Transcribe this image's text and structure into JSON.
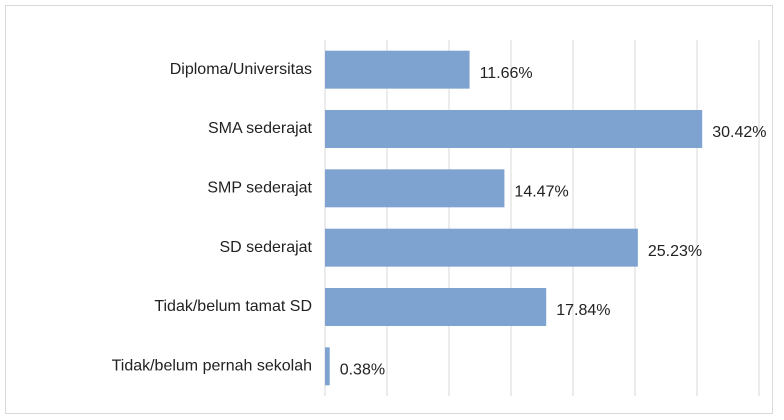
{
  "chart_data": {
    "type": "barh",
    "categories": [
      "Diploma/Universitas",
      "SMA sederajat",
      "SMP sederajat",
      "SD sederajat",
      "Tidak/belum tamat SD",
      "Tidak/belum pernah sekolah"
    ],
    "values": [
      11.66,
      30.42,
      14.47,
      25.23,
      17.84,
      0.38
    ],
    "value_labels": [
      "11.66%",
      "30.42%",
      "14.47%",
      "25.23%",
      "17.84%",
      "0.38%"
    ],
    "color": "#7fa3d0",
    "xlim": [
      0,
      35
    ],
    "xticks": [
      0,
      5,
      10,
      15,
      20,
      25,
      30,
      35
    ],
    "grid": true,
    "tick_labels": false
  }
}
